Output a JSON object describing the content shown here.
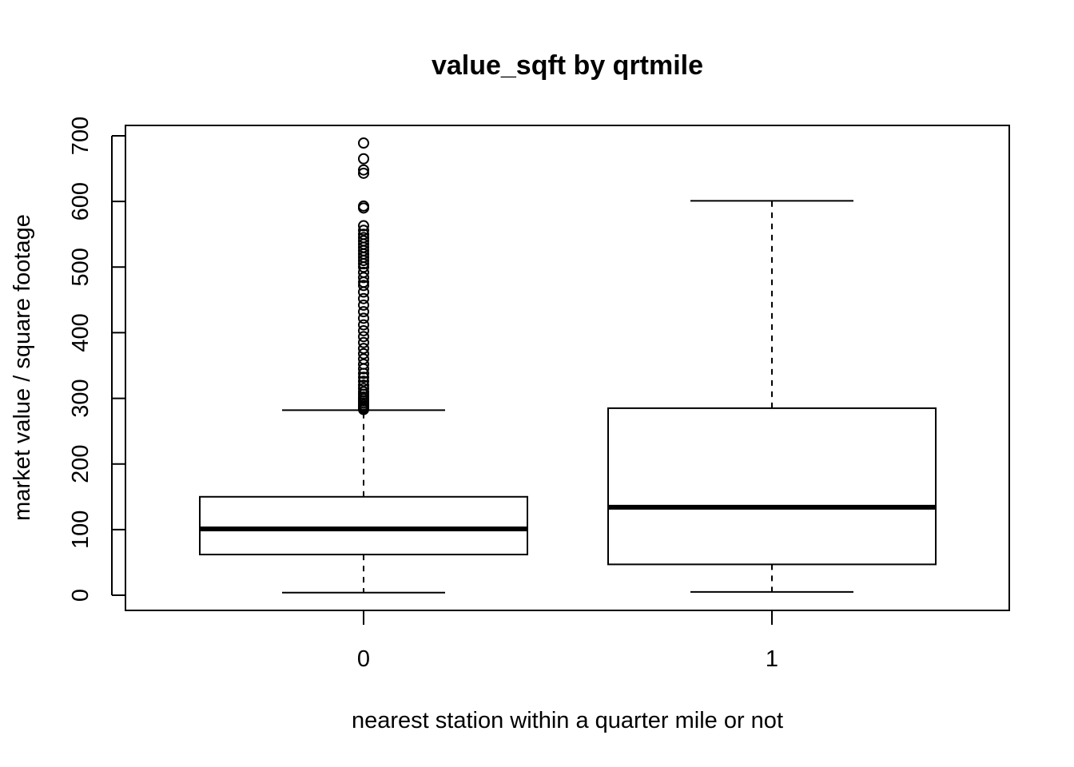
{
  "chart_data": {
    "type": "boxplot",
    "title": "value_sqft by qrtmile",
    "xlabel": "nearest station within a quarter mile or not",
    "ylabel": "market value / square footage",
    "ylim": [
      -23,
      715
    ],
    "yticks": [
      0,
      100,
      200,
      300,
      400,
      500,
      600,
      700
    ],
    "categories": [
      "0",
      "1"
    ],
    "boxes": [
      {
        "category": "0",
        "whisker_low": 4,
        "q1": 62,
        "median": 101,
        "q3": 150,
        "whisker_high": 282,
        "outliers": [
          283,
          285,
          287,
          290,
          293,
          296,
          299,
          302,
          306,
          310,
          315,
          320,
          326,
          332,
          338,
          345,
          352,
          360,
          368,
          376,
          385,
          394,
          403,
          412,
          422,
          432,
          442,
          452,
          462,
          472,
          477,
          484,
          492,
          500,
          505,
          510,
          515,
          520,
          525,
          530,
          535,
          540,
          545,
          550,
          556,
          563,
          590,
          593,
          643,
          648,
          665,
          689
        ]
      },
      {
        "category": "1",
        "whisker_low": 5,
        "q1": 47,
        "median": 134,
        "q3": 285,
        "whisker_high": 601,
        "outliers": []
      }
    ],
    "grid": false,
    "legend": "none"
  }
}
